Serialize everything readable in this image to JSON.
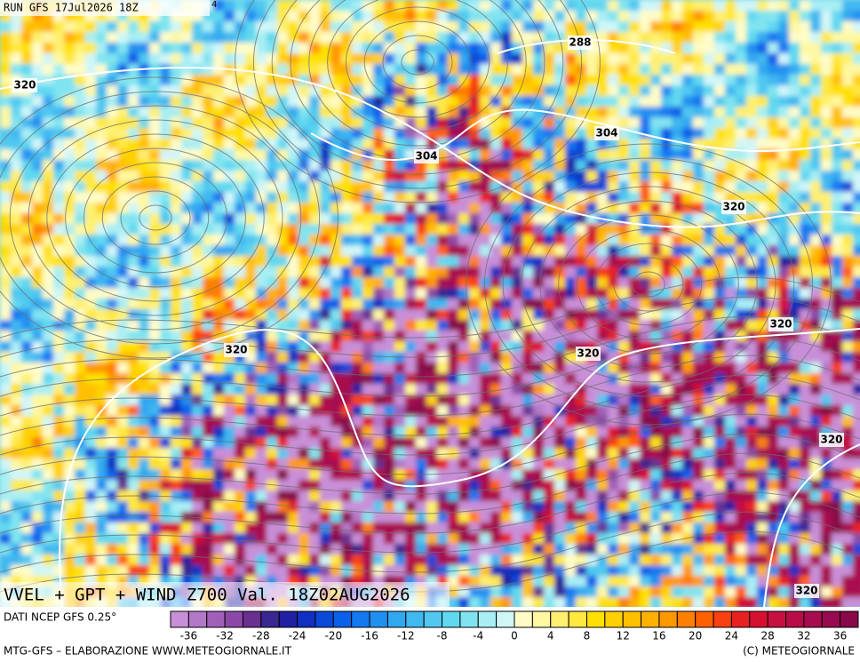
{
  "header": {
    "run": "RUN GFS 17Jul2026 18Z",
    "corner_mark": "4"
  },
  "map": {
    "contour_labels": [
      320,
      288,
      304,
      304,
      320,
      320,
      320,
      320,
      320,
      320
    ]
  },
  "title": "VVEL + GPT + WIND Z700 Val. 18Z02AUG2026",
  "footer": {
    "source": "DATI NCEP GFS 0.25°",
    "credit": "MTG-GFS – ELABORAZIONE WWW.METEOGIORNALE.IT",
    "copyright": "(C) METEOGIORNALE"
  },
  "colorbar": {
    "xlim": [
      -38,
      38
    ],
    "ticks": [
      -36,
      -32,
      -28,
      -24,
      -20,
      -16,
      -12,
      -8,
      -4,
      0,
      4,
      8,
      12,
      16,
      20,
      24,
      28,
      32,
      36
    ],
    "colors": [
      "#c88fd8",
      "#b478c8",
      "#a060b8",
      "#8c48a8",
      "#6a3090",
      "#3a2890",
      "#2020a0",
      "#1030c0",
      "#0a48d8",
      "#0a60e8",
      "#1478f0",
      "#2090f0",
      "#30a8f0",
      "#40b8f0",
      "#50c8f0",
      "#60d8f0",
      "#80e4f0",
      "#a8eef4",
      "#d0f6f8",
      "#fffcc8",
      "#fff8a0",
      "#fff070",
      "#ffe840",
      "#ffe000",
      "#ffd000",
      "#ffc000",
      "#ffb000",
      "#ff9800",
      "#ff8000",
      "#ff6000",
      "#f84010",
      "#e82020",
      "#d81030",
      "#c81040",
      "#b80c48",
      "#a80c50",
      "#980a50",
      "#880848"
    ]
  }
}
